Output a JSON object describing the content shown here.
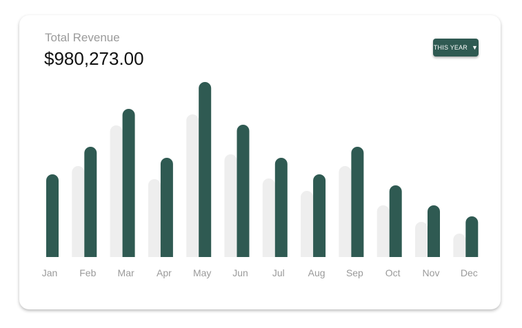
{
  "header": {
    "label": "Total Revenue",
    "value": "$980,273.00",
    "period_label": "THIS YEAR",
    "caret_icon": "caret-down-icon"
  },
  "colors": {
    "primary": "#2f5a52",
    "secondary": "#eeeeee",
    "axis_text": "#9a9a9a"
  },
  "chart_data": {
    "type": "bar",
    "categories": [
      "Jan",
      "Feb",
      "Mar",
      "Apr",
      "May",
      "Jun",
      "Jul",
      "Aug",
      "Sep",
      "Oct",
      "Nov",
      "Dec"
    ],
    "series": [
      {
        "color": "#eeeeee",
        "values": [
          0,
          132,
          191,
          113,
          207,
          149,
          114,
          96,
          132,
          75,
          51,
          34
        ]
      },
      {
        "color": "#2f5a52",
        "values": [
          120,
          160,
          215,
          144,
          254,
          192,
          144,
          120,
          160,
          104,
          75,
          59
        ]
      }
    ],
    "ylim": [
      0,
      260
    ],
    "grid": false,
    "legend": "none"
  }
}
